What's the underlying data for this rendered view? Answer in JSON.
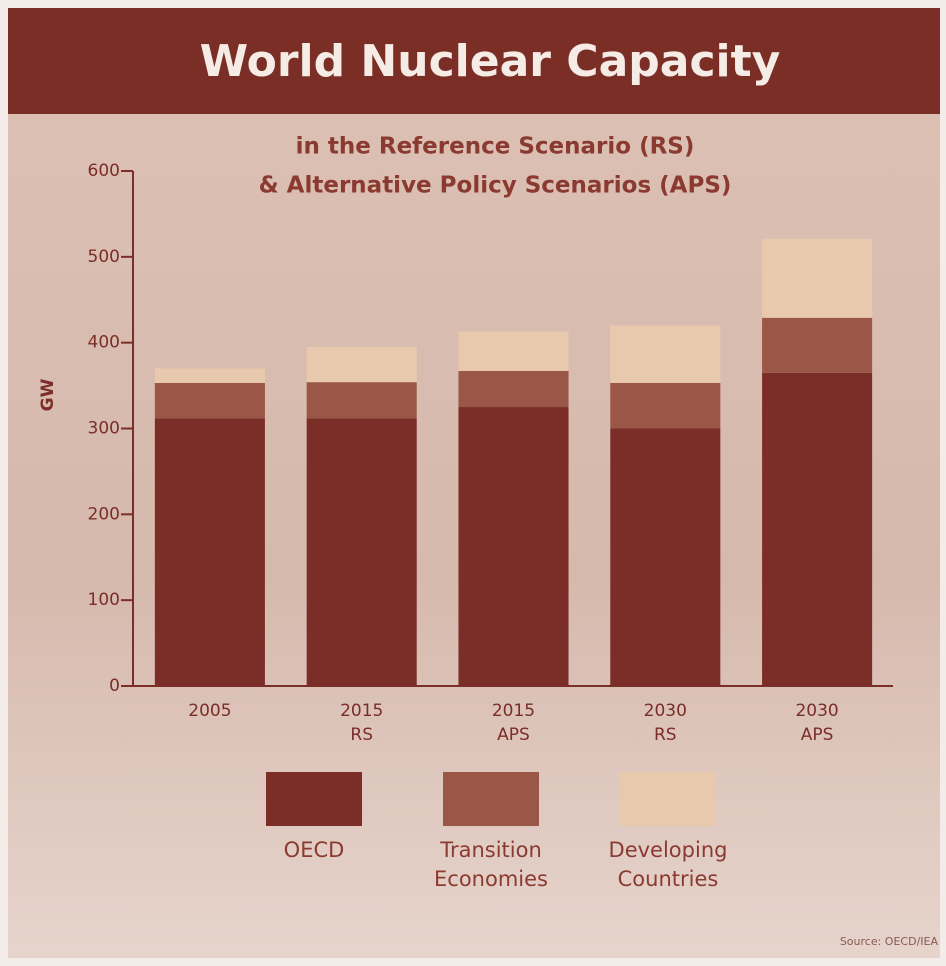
{
  "chart_data": {
    "type": "stacked_bar",
    "title": "World Nuclear Capacity",
    "subtitle": [
      "in the Reference Scenario (RS)",
      "& Alternative Policy Scenarios (APS)"
    ],
    "y_label": "GW",
    "categories": [
      "2005",
      "2015 RS",
      "2015 APS",
      "2030 RS",
      "2030 APS"
    ],
    "series": [
      {
        "name": "OECD",
        "color": "#7a2e27",
        "values": [
          312,
          312,
          325,
          300,
          365
        ]
      },
      {
        "name": "Transition Economies",
        "color": "#9a5646",
        "values": [
          41,
          42,
          42,
          53,
          64
        ]
      },
      {
        "name": "Developing Countries",
        "color": "#e8c9ad",
        "values": [
          17,
          41,
          46,
          67,
          92
        ]
      }
    ],
    "ylim": [
      0,
      600
    ],
    "yticks": [
      0,
      100,
      200,
      300,
      400,
      500,
      600
    ],
    "legend": "bottom",
    "source": "Source: OECD/IEA"
  }
}
